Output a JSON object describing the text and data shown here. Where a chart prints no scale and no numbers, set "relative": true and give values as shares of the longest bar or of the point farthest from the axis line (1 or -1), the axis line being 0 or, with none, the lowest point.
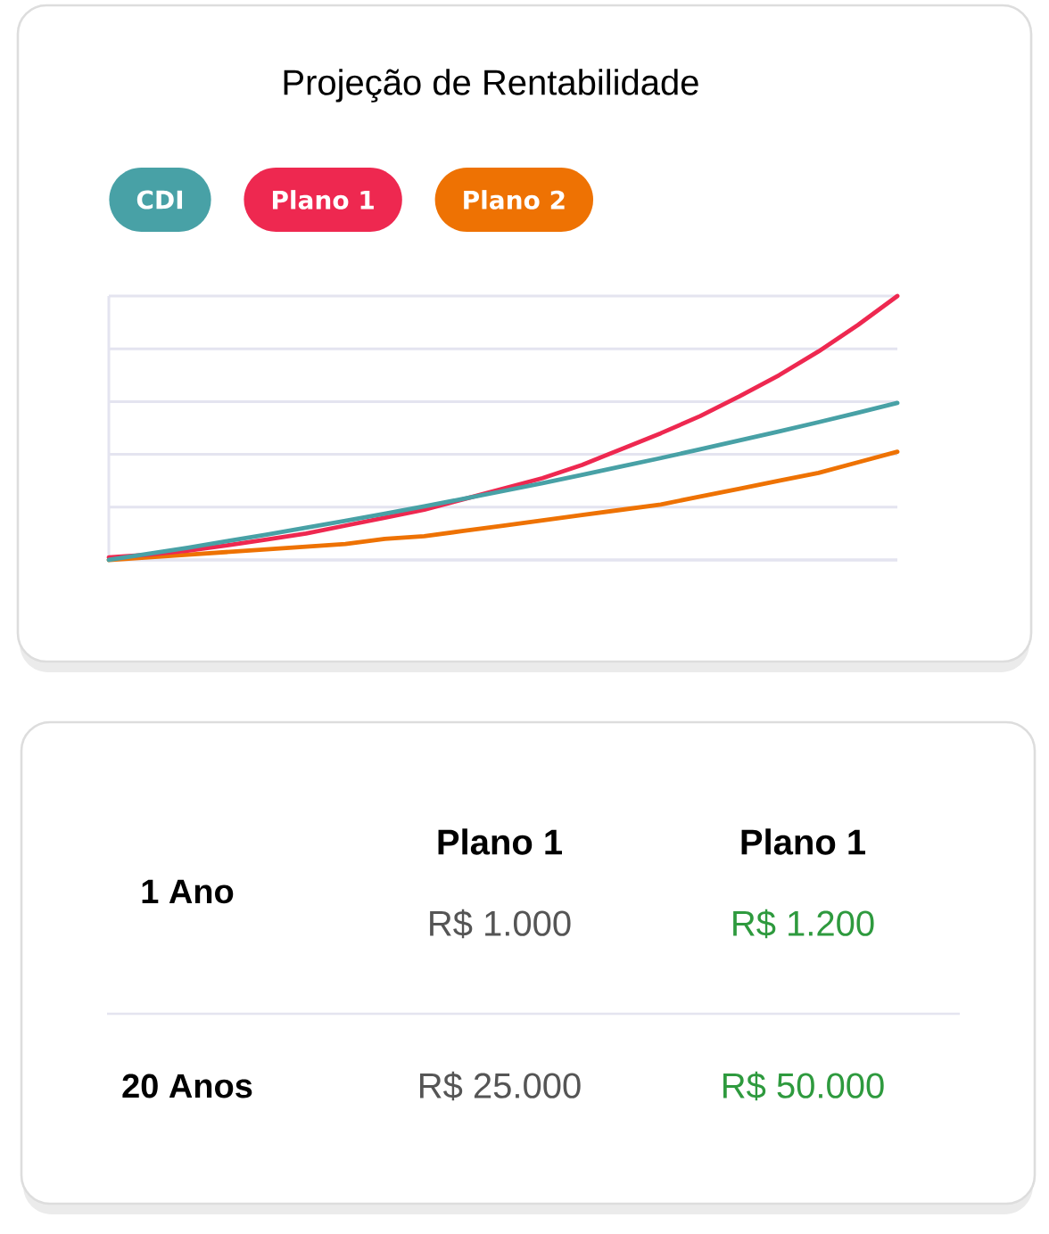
{
  "chart_data": [
    {
      "type": "line",
      "title": "Projeção de Rentabilidade",
      "categories": [
        null,
        null,
        null,
        null,
        null,
        null,
        null,
        null,
        null,
        null,
        null,
        null,
        null,
        null,
        null,
        null,
        null,
        null,
        null,
        null,
        null
      ],
      "relative": true,
      "grid": "y",
      "legend": "top left",
      "series": [
        {
          "name": "CDI",
          "color": "#48a1a6",
          "values": [
            0,
            0.023,
            0.046,
            0.071,
            0.096,
            0.122,
            0.148,
            0.175,
            0.203,
            0.232,
            0.261,
            0.291,
            0.322,
            0.354,
            0.386,
            0.419,
            0.453,
            0.487,
            0.522,
            0.558,
            0.595
          ]
        },
        {
          "name": "Plano 1",
          "color": "#ee2850",
          "values": [
            0.01,
            0.02,
            0.035,
            0.055,
            0.077,
            0.1,
            0.13,
            0.16,
            0.19,
            0.23,
            0.27,
            0.31,
            0.36,
            0.42,
            0.48,
            0.545,
            0.62,
            0.7,
            0.79,
            0.89,
            1
          ]
        },
        {
          "name": "Plano 2",
          "color": "#ee7203",
          "values": [
            0,
            0.01,
            0.02,
            0.03,
            0.04,
            0.05,
            0.06,
            0.08,
            0.09,
            0.11,
            0.13,
            0.15,
            0.17,
            0.19,
            0.21,
            0.24,
            0.27,
            0.3,
            0.33,
            0.37,
            0.41
          ]
        }
      ]
    },
    {
      "type": "other",
      "annotations": [
        "Plano 1",
        "Plano 1",
        "1 Ano",
        "R$ 1.000",
        "R$ 1.200",
        "20 Anos",
        "R$ 25.000",
        "R$ 50.000"
      ],
      "colors": [
        "#000000",
        "#000000",
        "#000000",
        "#555555",
        "#2e9a3e",
        "#000000",
        "#555555",
        "#2e9a3e"
      ]
    }
  ]
}
